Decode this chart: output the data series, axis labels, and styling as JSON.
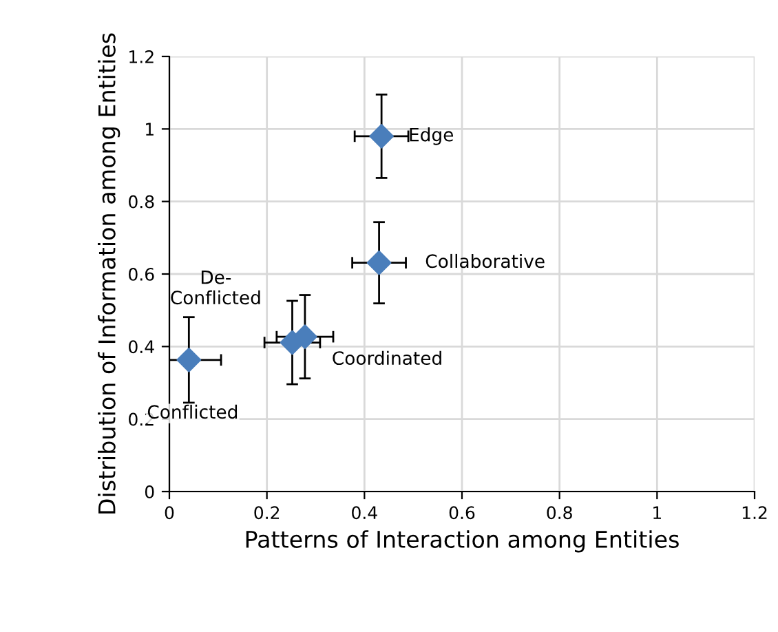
{
  "chart_data": {
    "type": "scatter",
    "xlabel": "Patterns of Interaction among Entities",
    "ylabel": "Distribution of Information among Entities",
    "x": [
      0.04,
      0.252,
      0.278,
      0.43,
      0.435
    ],
    "values": [
      0.363,
      0.411,
      0.427,
      0.631,
      0.98
    ],
    "errors": [
      0.118,
      0.115,
      0.115,
      0.112,
      0.115
    ],
    "xerrors": [
      0.066,
      0.057,
      0.058,
      0.055,
      0.055
    ],
    "color": "#4a7ebb",
    "marker": "diamond",
    "grid": true,
    "xlim": [
      0,
      1.2
    ],
    "ylim": [
      0,
      1.2
    ],
    "xticks": [
      0,
      0.2,
      0.4,
      0.6,
      0.8,
      1,
      1.2
    ],
    "yticks": [
      0,
      0.2,
      0.4,
      0.6,
      0.8,
      1,
      1.2
    ],
    "annotations": [
      {
        "text": "Conflicted",
        "x": 0.04,
        "y": 0.363
      },
      {
        "text": "De-\nConflicted",
        "x": 0.252,
        "y": 0.411
      },
      {
        "text": "Coordinated",
        "x": 0.278,
        "y": 0.427
      },
      {
        "text": "Collaborative",
        "x": 0.43,
        "y": 0.631
      },
      {
        "text": "Edge",
        "x": 0.435,
        "y": 0.98
      }
    ]
  }
}
